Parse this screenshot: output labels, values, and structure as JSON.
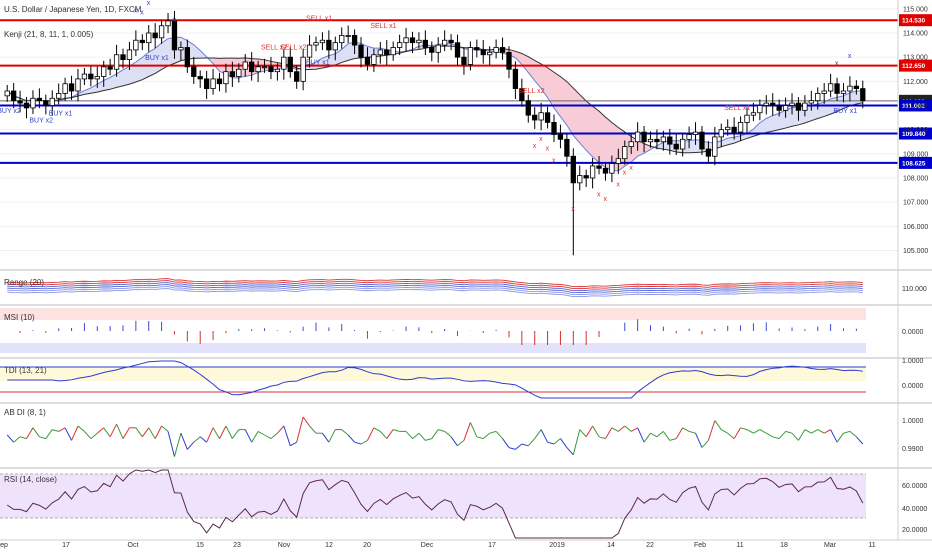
{
  "title": "U.S. Dollar / Japanese Yen, 1D, FXCM",
  "overlay_label": "Kenji (21, 8, 11, 1, 0.005)",
  "price_axis_ticks": [
    "115.000",
    "114.000",
    "113.000",
    "112.000",
    "111.000",
    "110.000",
    "109.000",
    "108.000",
    "107.000",
    "106.000",
    "105.000"
  ],
  "level_tags": [
    "114.530",
    "112.650",
    "111.193",
    "111.002",
    "109.840",
    "108.625"
  ],
  "x_axis_labels": [
    "ep",
    "17",
    "Oct",
    "15",
    "23",
    "Nov",
    "12",
    "20",
    "Dec",
    "17",
    "2019",
    "14",
    "22",
    "Feb",
    "11",
    "18",
    "Mar",
    "11"
  ],
  "signal_labels": {
    "buy1": "BUY x1",
    "buy2": "BUY x2",
    "sell1": "SELL x1",
    "sell2": "SELL x2",
    "x_mark": "x"
  },
  "panels": {
    "range": {
      "label": "Range (20)",
      "tick": "110.000"
    },
    "msi": {
      "label": "MSI (10)",
      "tick": "0.0000"
    },
    "tdi": {
      "label": "TDI (13, 21)",
      "ticks": [
        "1.0000",
        "0.0000"
      ]
    },
    "abdi": {
      "label": "AB DI (8, 1)",
      "ticks": [
        "1.0000",
        "0.9900"
      ]
    },
    "rsi": {
      "label": "RSI (14, close)",
      "ticks": [
        "60.0000",
        "40.0000",
        "20.0000"
      ]
    }
  },
  "colors": {
    "bull": "#ffffff",
    "bear": "#000000",
    "res_line": "#e00000",
    "sup_line": "#0000cc",
    "cloud_top": "#6a7fd6",
    "cloud_fill_pink": "#f7c6d2",
    "cloud_fill_blue": "#d9dcf3",
    "buy": "#2a3fd0",
    "sell": "#e03030",
    "rsi_line": "#5a2a4a",
    "rsi_band": "#efe3fb"
  },
  "chart_data": {
    "type": "candlestick",
    "symbol": "USD/JPY",
    "timeframe": "1D",
    "ylim": [
      104.4,
      115.2
    ],
    "horizontal_levels": [
      {
        "value": 114.53,
        "kind": "resistance",
        "color": "red"
      },
      {
        "value": 112.65,
        "kind": "resistance",
        "color": "red"
      },
      {
        "value": 111.193,
        "kind": "last_price",
        "color": "gray"
      },
      {
        "value": 111.002,
        "kind": "support",
        "color": "blue"
      },
      {
        "value": 109.84,
        "kind": "support",
        "color": "blue"
      },
      {
        "value": 108.625,
        "kind": "support",
        "color": "blue"
      }
    ],
    "closes": [
      111.6,
      111.2,
      111.1,
      110.9,
      111.3,
      111.2,
      111.0,
      111.3,
      111.5,
      111.9,
      111.6,
      112.1,
      112.3,
      112.1,
      112.2,
      112.6,
      112.5,
      113.1,
      112.9,
      113.3,
      113.7,
      113.6,
      114.0,
      113.8,
      114.3,
      114.5,
      113.3,
      113.4,
      112.6,
      112.2,
      112.1,
      111.7,
      112.1,
      111.9,
      112.4,
      112.2,
      112.5,
      112.8,
      112.4,
      112.6,
      112.6,
      112.4,
      112.5,
      113.0,
      112.4,
      112.0,
      113.0,
      113.5,
      113.6,
      113.7,
      113.3,
      113.6,
      113.9,
      113.9,
      113.5,
      113.0,
      112.7,
      113.1,
      113.3,
      113.1,
      113.4,
      113.6,
      113.8,
      113.6,
      113.7,
      113.4,
      113.2,
      113.5,
      113.7,
      113.6,
      113.0,
      112.7,
      113.4,
      113.3,
      113.1,
      113.2,
      113.4,
      113.2,
      112.5,
      111.7,
      111.2,
      110.6,
      110.4,
      110.7,
      110.3,
      109.8,
      109.6,
      108.9,
      107.8,
      108.1,
      108.0,
      108.5,
      108.4,
      108.2,
      108.6,
      108.8,
      109.3,
      109.5,
      109.9,
      109.5,
      109.6,
      109.5,
      109.7,
      109.4,
      109.2,
      109.6,
      109.8,
      109.9,
      109.2,
      108.9,
      109.7,
      110.0,
      110.1,
      109.9,
      110.3,
      110.6,
      110.7,
      111.0,
      111.1,
      111.0,
      110.8,
      111.0,
      111.1,
      110.8,
      111.1,
      111.2,
      111.5,
      111.6,
      111.9,
      111.5,
      111.6,
      111.8,
      111.7,
      111.2
    ]
  }
}
